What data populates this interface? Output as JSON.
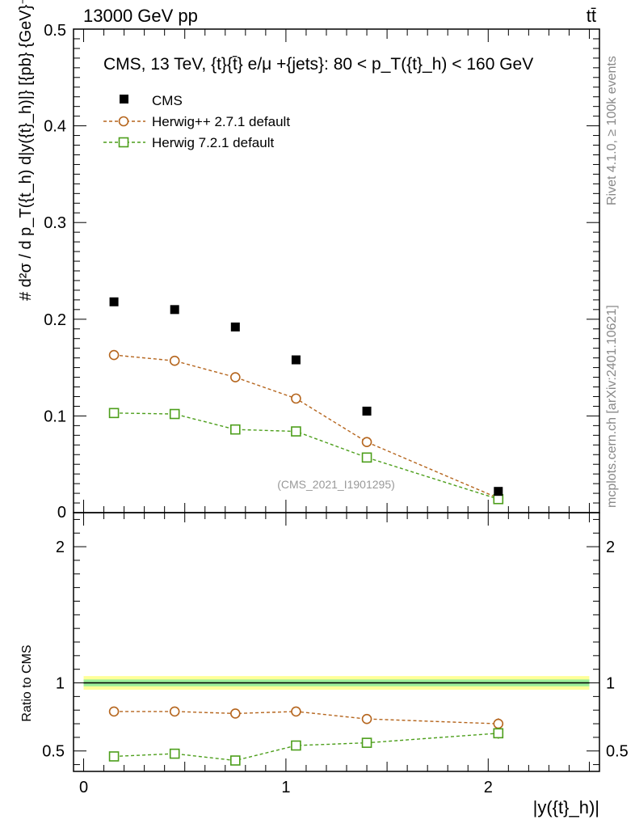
{
  "header": {
    "energy_label": "13000 GeV pp",
    "process_label": "tt̄"
  },
  "side_labels": {
    "rivet": "Rivet 4.1.0, ≥ 100k events",
    "mcplots": "mcplots.cern.ch [arXiv:2401.10621]"
  },
  "analysis_id": "(CMS_2021_I1901295)",
  "colors": {
    "cms": "#000000",
    "herwigpp": "#b5651d",
    "herwig7": "#4c9e1a",
    "band_outer": "#ffff99",
    "band_inner": "#99ee99"
  },
  "chart_data": [
    {
      "type": "scatter",
      "title": "CMS, 13 TeV, {t}{t̄} e/μ +{jets}: 80 <  p_T({t}_h) < 160 GeV",
      "ylabel": "# d²σ / d p_T({t_h) d|y({t}_h)|} [{pb} {GeV}⁻¹]",
      "xlabel": "|y({t}_h)|",
      "xlim": [
        -0.05,
        2.55
      ],
      "ylim": [
        0,
        0.5
      ],
      "yticks": [
        "0",
        "0.1",
        "0.2",
        "0.3",
        "0.4",
        "0.5"
      ],
      "legend_position": "top-left",
      "x": [
        0.15,
        0.45,
        0.75,
        1.05,
        1.4,
        2.05
      ],
      "series": [
        {
          "name": "CMS",
          "marker": "filled-square",
          "values": [
            0.218,
            0.21,
            0.192,
            0.158,
            0.105,
            0.022
          ]
        },
        {
          "name": "Herwig++ 2.7.1 default",
          "marker": "open-circle",
          "values": [
            0.163,
            0.157,
            0.14,
            0.118,
            0.073,
            0.015
          ],
          "errors": [
            0.005,
            0.005,
            0.005,
            0.004,
            0.003,
            0.002
          ]
        },
        {
          "name": "Herwig 7.2.1 default",
          "marker": "open-square",
          "values": [
            0.103,
            0.102,
            0.086,
            0.084,
            0.057,
            0.014
          ],
          "errors": [
            0.003,
            0.003,
            0.003,
            0.003,
            0.002,
            0.002
          ]
        }
      ]
    },
    {
      "type": "line",
      "title": "",
      "ylabel": "Ratio to CMS",
      "xlabel": "|y({t}_h)|",
      "xlim": [
        -0.05,
        2.55
      ],
      "ylim": [
        0.35,
        2.25
      ],
      "yticks": [
        "0.5",
        "1",
        "2"
      ],
      "xticks": [
        "0",
        "1",
        "2"
      ],
      "reference_band": {
        "center": 1.0,
        "outer": 0.05,
        "inner": 0.025
      },
      "x": [
        0.15,
        0.45,
        0.75,
        1.05,
        1.4,
        2.05
      ],
      "series": [
        {
          "name": "Herwig++ 2.7.1 default",
          "values": [
            0.79,
            0.79,
            0.775,
            0.79,
            0.735,
            0.7
          ],
          "errors": [
            0.02,
            0.02,
            0.025,
            0.025,
            0.025,
            0.04
          ]
        },
        {
          "name": "Herwig 7.2.1 default",
          "values": [
            0.46,
            0.48,
            0.43,
            0.54,
            0.56,
            0.63
          ],
          "errors": [
            0.02,
            0.02,
            0.02,
            0.025,
            0.025,
            0.04
          ]
        }
      ]
    }
  ]
}
